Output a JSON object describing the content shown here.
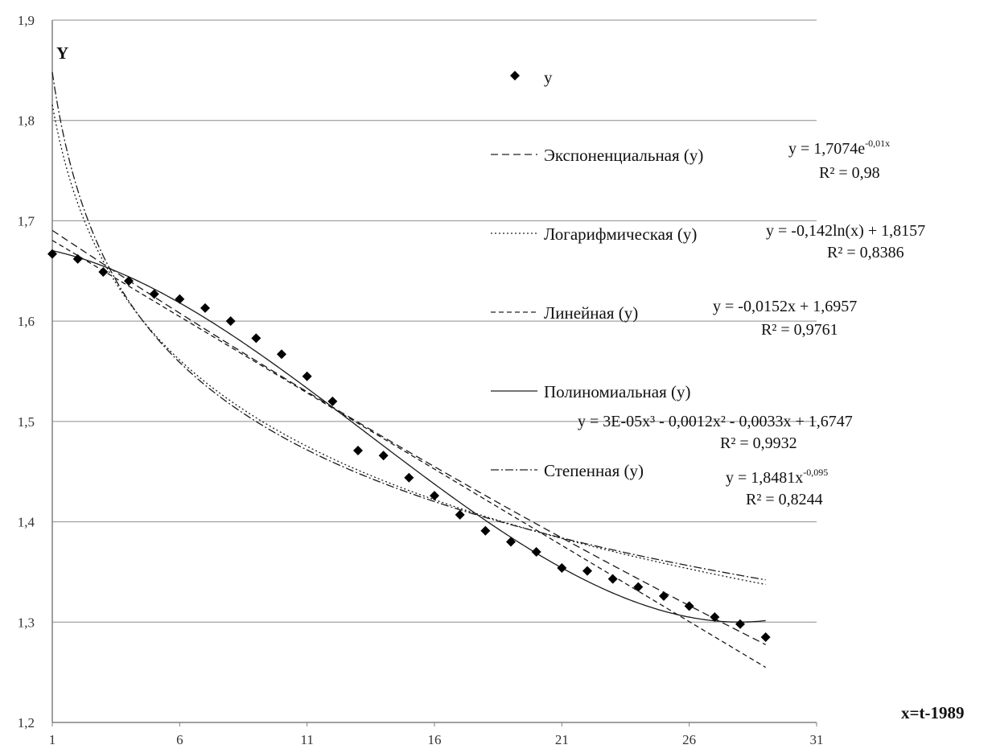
{
  "chart_data": {
    "type": "scatter",
    "title": "",
    "xlabel": "x=t-1989",
    "ylabel": "Y",
    "xlim": [
      1,
      31
    ],
    "ylim": [
      1.2,
      1.9
    ],
    "x_ticks": [
      "1",
      "6",
      "11",
      "16",
      "21",
      "26",
      "31"
    ],
    "y_ticks": [
      "1,2",
      "1,3",
      "1,4",
      "1,5",
      "1,6",
      "1,7",
      "1,8",
      "1,9"
    ],
    "grid": "horizontal",
    "legend_position": "right",
    "series": [
      {
        "name": "y",
        "style": "markers",
        "x": [
          1,
          2,
          3,
          4,
          5,
          6,
          7,
          8,
          9,
          10,
          11,
          12,
          13,
          14,
          15,
          16,
          17,
          18,
          19,
          20,
          21,
          22,
          23,
          24,
          25,
          26,
          27,
          28,
          29
        ],
        "y": [
          1.667,
          1.662,
          1.649,
          1.64,
          1.627,
          1.622,
          1.613,
          1.6,
          1.583,
          1.567,
          1.545,
          1.52,
          1.471,
          1.466,
          1.444,
          1.426,
          1.407,
          1.391,
          1.38,
          1.37,
          1.354,
          1.351,
          1.343,
          1.335,
          1.326,
          1.316,
          1.305,
          1.298,
          1.285
        ]
      }
    ],
    "trendlines": [
      {
        "name": "Экспоненциальная (y)",
        "kind": "exponential",
        "coefficients": {
          "a": 1.7074,
          "b": -0.01
        },
        "dash": "9,5",
        "equation": {
          "lead": "y = 1,7074e",
          "sup": "-0,01x"
        },
        "r2": "R² = 0,98"
      },
      {
        "name": "Логарифмическая (y)",
        "kind": "logarithmic",
        "coefficients": {
          "a": -0.142,
          "b": 1.8157
        },
        "dash": "2,3",
        "equation": {
          "lead": "y = -0,142ln(x) + 1,8157",
          "sup": ""
        },
        "r2": "R² = 0,8386"
      },
      {
        "name": "Линейная (y)",
        "kind": "linear",
        "coefficients": {
          "a": -0.0152,
          "b": 1.6957
        },
        "dash": "6,4",
        "equation": {
          "lead": "y = -0,0152x + 1,6957",
          "sup": ""
        },
        "r2": "R² = 0,9761"
      },
      {
        "name": "Полиномиальная (y)",
        "kind": "polynomial",
        "coefficients": {
          "c3": 3e-05,
          "c2": -0.0012,
          "c1": -0.0033,
          "c0": 1.6747
        },
        "dash": "",
        "equation": {
          "lead": "y = 3E-05x³ - 0,0012x² - 0,0033x + 1,6747",
          "sup": ""
        },
        "r2": "R² = 0,9932"
      },
      {
        "name": "Степенная (y)",
        "kind": "power",
        "coefficients": {
          "a": 1.8481,
          "b": -0.095
        },
        "dash": "10,3,2,3",
        "equation": {
          "lead": "y = 1,8481x",
          "sup": "-0,095"
        },
        "r2": "R² = 0,8244"
      }
    ]
  }
}
